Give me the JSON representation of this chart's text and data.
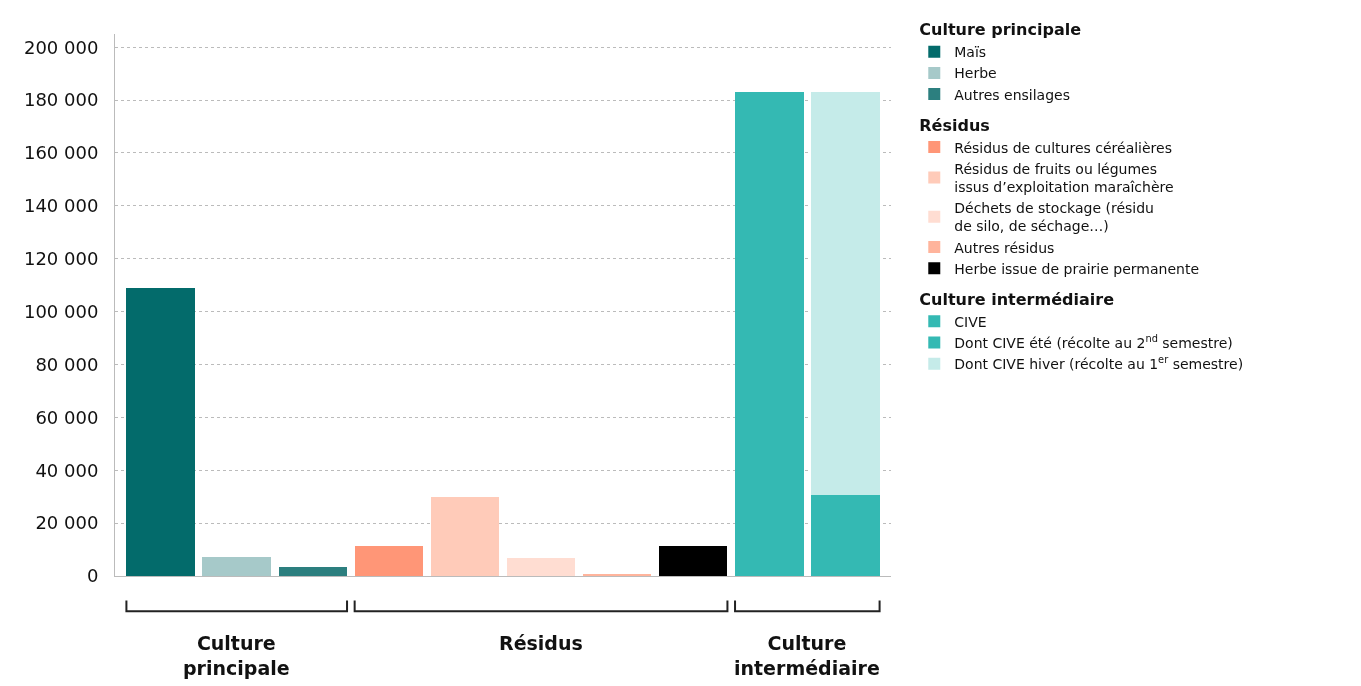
{
  "chart_data": {
    "type": "bar",
    "stacked": true,
    "categories": [
      null,
      null,
      null,
      null,
      null,
      null,
      null,
      null,
      null,
      null
    ],
    "annotations": [
      "Culture principale",
      "Résidus",
      "Culture intermédiaire"
    ],
    "ylim": [
      0,
      205000
    ],
    "yticks": [
      {
        "value": 0,
        "label": "0"
      },
      {
        "value": 20000,
        "label": "20 000"
      },
      {
        "value": 40000,
        "label": "40 000"
      },
      {
        "value": 60000,
        "label": "60 000"
      },
      {
        "value": 80000,
        "label": "80 000"
      },
      {
        "value": 100000,
        "label": "100 000"
      },
      {
        "value": 120000,
        "label": "120 000"
      },
      {
        "value": 140000,
        "label": "140 000"
      },
      {
        "value": 160000,
        "label": "160 000"
      },
      {
        "value": 180000,
        "label": "180 000"
      },
      {
        "value": 200000,
        "label": "200 000"
      }
    ],
    "grid": "y",
    "legend": "right",
    "series": [
      {
        "name": "Maïs",
        "color": "#036b6b",
        "values": [
          109000,
          null,
          null,
          null,
          null,
          null,
          null,
          null,
          null,
          null
        ]
      },
      {
        "name": "Herbe",
        "color": "#a6c9c9",
        "values": [
          null,
          7200,
          null,
          null,
          null,
          null,
          null,
          null,
          null,
          null
        ]
      },
      {
        "name": "Autres ensilages",
        "color": "#2c7f7f",
        "values": [
          null,
          null,
          3300,
          null,
          null,
          null,
          null,
          null,
          null,
          null
        ]
      },
      {
        "name": "Résidus de cultures céréalières",
        "color": "#ff9677",
        "values": [
          null,
          null,
          null,
          11300,
          null,
          null,
          null,
          null,
          null,
          null
        ]
      },
      {
        "name": "Résidus de fruits ou légumes\nissus d’exploitation maraîchère",
        "color": "#ffcbb9",
        "values": [
          null,
          null,
          null,
          null,
          30000,
          null,
          null,
          null,
          null,
          null
        ]
      },
      {
        "name": "Déchets de stockage (résidu\nde silo, de séchage…)",
        "color": "#ffddd2",
        "values": [
          null,
          null,
          null,
          null,
          null,
          6800,
          null,
          null,
          null,
          null
        ]
      },
      {
        "name": "Autres résidus",
        "color": "#ffb49c",
        "values": [
          null,
          null,
          null,
          null,
          null,
          null,
          600,
          null,
          null,
          null
        ]
      },
      {
        "name": "Herbe issue de prairie permanente",
        "color": "#000000",
        "values": [
          null,
          null,
          null,
          null,
          null,
          null,
          null,
          11300,
          null,
          null
        ]
      },
      {
        "name": "CIVE",
        "color": "#34b9b3",
        "values": [
          null,
          null,
          null,
          null,
          null,
          null,
          null,
          null,
          183000,
          null
        ]
      },
      {
        "name": "Dont CIVE été (récolte au 2$^{nd}$ semestre)",
        "color": "#34b9b3",
        "values": [
          null,
          null,
          null,
          null,
          null,
          null,
          null,
          null,
          null,
          30500
        ]
      },
      {
        "name": "Dont CIVE hiver (récolte au 1$^{er}$ semestre)",
        "color": "#c5ebe9",
        "values": [
          null,
          null,
          null,
          null,
          null,
          null,
          null,
          null,
          null,
          152500
        ]
      }
    ]
  }
}
